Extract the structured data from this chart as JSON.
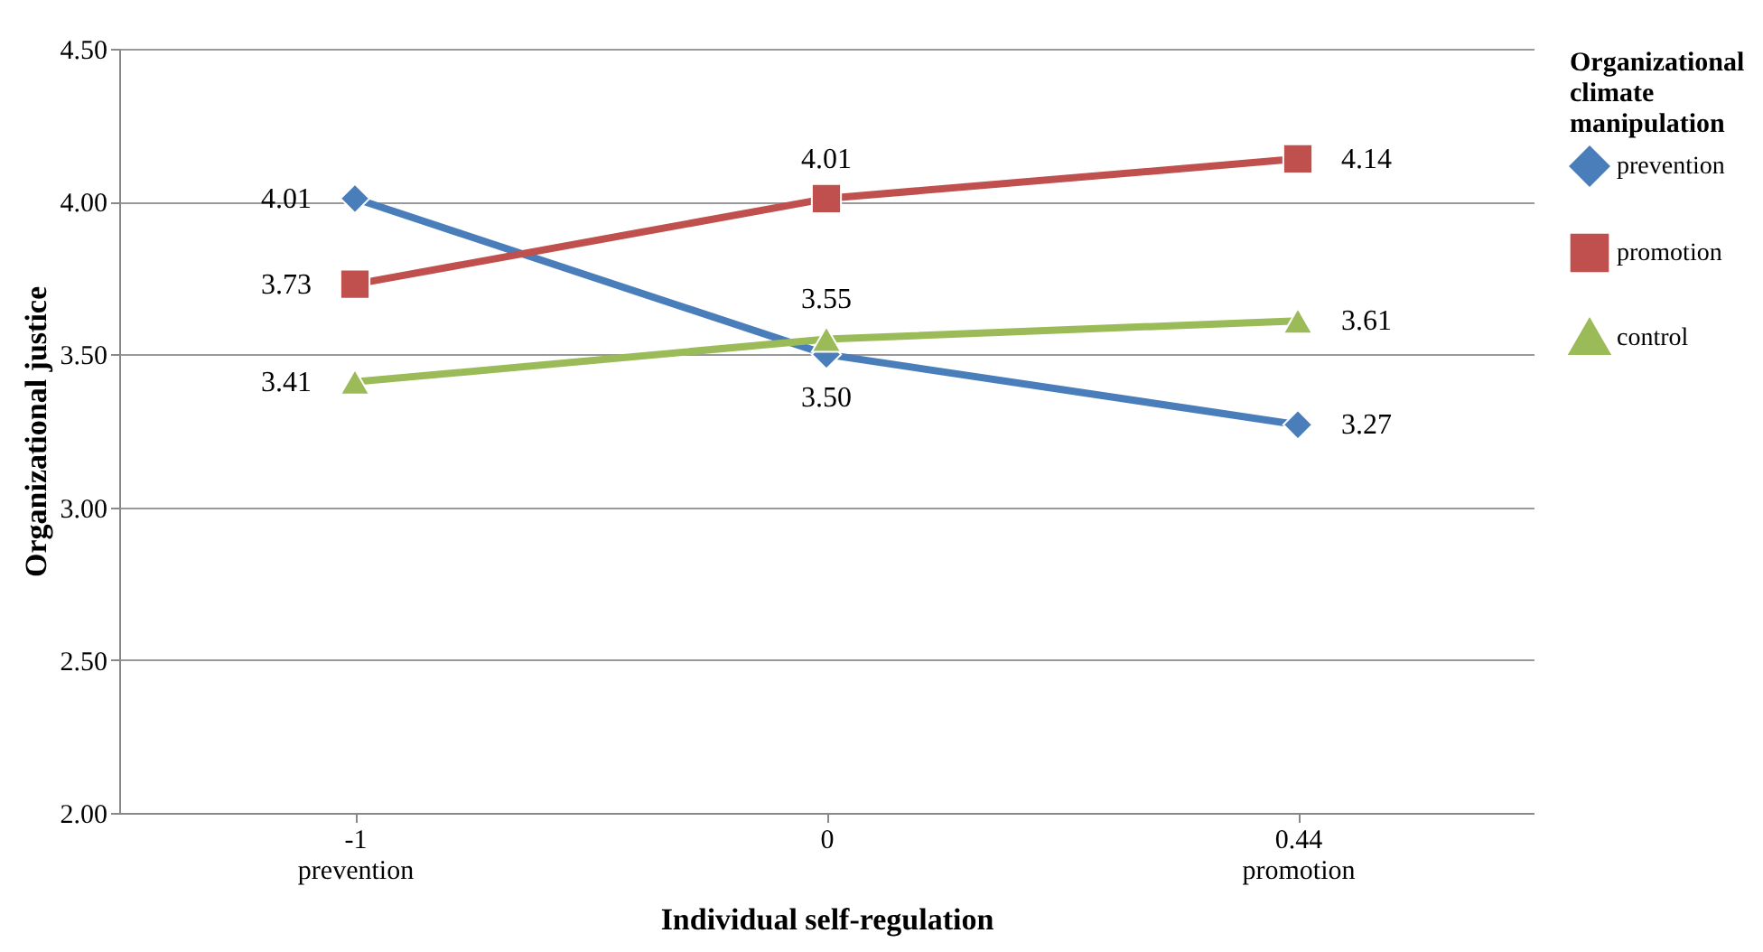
{
  "chart_data": {
    "type": "line",
    "xlabel": "Individual self-regulation",
    "ylabel": "Organizational justice",
    "legend_title": "Organizational climate manipulation",
    "legend": "right",
    "categories": [
      "-1\nprevention",
      "0",
      "0.44\npromotion"
    ],
    "series": [
      {
        "name": "prevention",
        "color": "#4a7ebb",
        "marker": "diamond",
        "values": [
          4.01,
          3.5,
          3.27
        ],
        "value_labels": [
          "4.01",
          "3.50",
          "3.27"
        ]
      },
      {
        "name": "promotion",
        "color": "#c0504d",
        "marker": "square",
        "values": [
          3.73,
          4.01,
          4.14
        ],
        "value_labels": [
          "3.73",
          "4.01",
          "4.14"
        ]
      },
      {
        "name": "control",
        "color": "#9bbb59",
        "marker": "triangle",
        "values": [
          3.41,
          3.55,
          3.61
        ],
        "value_labels": [
          "3.41",
          "3.55",
          "3.61"
        ]
      }
    ],
    "ylim": [
      2,
      4.5
    ],
    "yticks": [
      {
        "value": 2,
        "label": "2.00"
      },
      {
        "value": 2.5,
        "label": "2.50"
      },
      {
        "value": 3,
        "label": "3.00"
      },
      {
        "value": 3.5,
        "label": "3.50"
      },
      {
        "value": 4,
        "label": "4.00"
      },
      {
        "value": 4.5,
        "label": "4.50"
      }
    ],
    "grid": "y"
  }
}
